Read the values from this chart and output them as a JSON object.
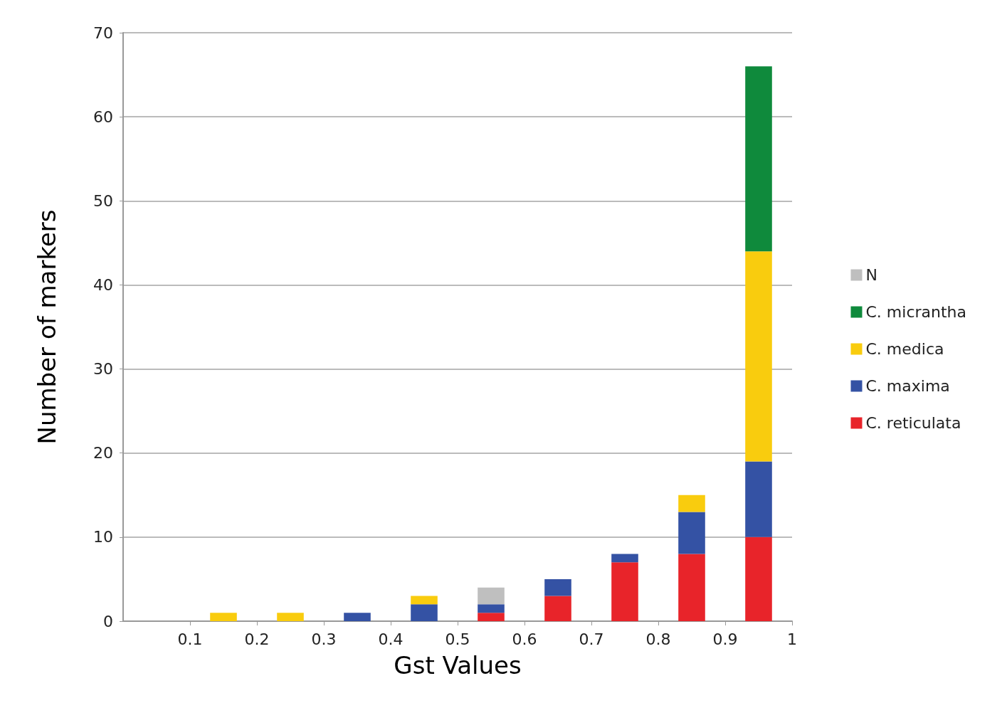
{
  "chart_data": {
    "type": "bar",
    "stacked": true,
    "xlabel": "Gst Values",
    "ylabel": "Number of markers",
    "x": [
      0.05,
      0.15,
      0.25,
      0.35,
      0.45,
      0.55,
      0.65,
      0.75,
      0.85,
      0.95
    ],
    "xlim": [
      0,
      1
    ],
    "xticks": [
      0.1,
      0.2,
      0.3,
      0.4,
      0.5,
      0.6,
      0.7,
      0.8,
      0.9,
      1
    ],
    "ylim": [
      0,
      70
    ],
    "yticks": [
      0,
      10,
      20,
      30,
      40,
      50,
      60,
      70
    ],
    "grid": "y",
    "legend": "right",
    "series": [
      {
        "name": "C. reticulata",
        "color": "#e8242a",
        "values": [
          0,
          0,
          0,
          0,
          0,
          1,
          3,
          7,
          8,
          10
        ]
      },
      {
        "name": "C. maxima",
        "color": "#3452a4",
        "values": [
          0,
          0,
          0,
          1,
          2,
          1,
          2,
          1,
          5,
          9
        ]
      },
      {
        "name": "C. medica",
        "color": "#f9cc0e",
        "values": [
          0,
          1,
          1,
          0,
          1,
          0,
          0,
          0,
          2,
          25
        ]
      },
      {
        "name": "C. micrantha",
        "color": "#0f8a3c",
        "values": [
          0,
          0,
          0,
          0,
          0,
          0,
          0,
          0,
          0,
          22
        ]
      },
      {
        "name": "N",
        "color": "#bfbfbf",
        "values": [
          0,
          0,
          0,
          0,
          0,
          2,
          0,
          0,
          0,
          0
        ]
      }
    ]
  }
}
